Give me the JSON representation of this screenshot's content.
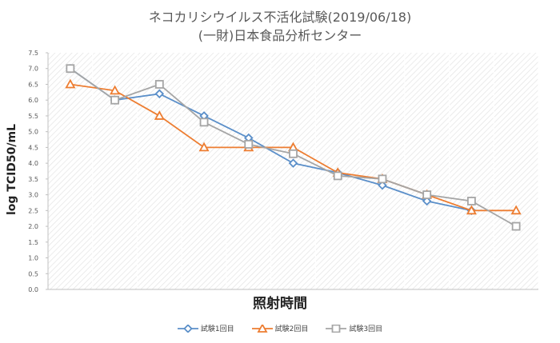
{
  "colors": {
    "series1": "#5b8fc9",
    "series2": "#ed7d31",
    "series3": "#a5a5a5",
    "grid_hatch": "#e3e3e3",
    "axis": "#c0c0c0",
    "text": "#595959"
  },
  "chart_data": {
    "type": "line",
    "title": "ネコカリシウイルス不活化試験(2019/06/18)",
    "subtitle": "(一財)日本食品分析センター",
    "xlabel": "照射時間",
    "ylabel": "log TCID50/mL",
    "ylim": [
      0,
      7.5
    ],
    "yticks": [
      "0.0",
      "0.5",
      "1.0",
      "1.5",
      "2.0",
      "2.5",
      "3.0",
      "3.5",
      "4.0",
      "4.5",
      "5.0",
      "5.5",
      "6.0",
      "6.5",
      "7.0",
      "7.5"
    ],
    "x": [
      1,
      2,
      3,
      4,
      5,
      6,
      7,
      8,
      9,
      10,
      11
    ],
    "xlim": [
      0.5,
      11.5
    ],
    "legend_position": "bottom",
    "series": [
      {
        "name": "試験1回目",
        "marker": "diamond",
        "color_key": "series1",
        "values": [
          7.0,
          6.0,
          6.2,
          5.5,
          4.8,
          4.0,
          3.7,
          3.3,
          2.8,
          2.5,
          null
        ]
      },
      {
        "name": "試験2回目",
        "marker": "triangle",
        "color_key": "series2",
        "values": [
          6.5,
          6.3,
          5.5,
          4.5,
          4.5,
          4.5,
          3.7,
          3.5,
          3.0,
          2.5,
          2.5
        ]
      },
      {
        "name": "試験3回目",
        "marker": "square",
        "color_key": "series3",
        "values": [
          7.0,
          6.0,
          6.5,
          5.3,
          4.6,
          4.3,
          3.6,
          3.5,
          3.0,
          2.8,
          2.0
        ]
      }
    ]
  }
}
